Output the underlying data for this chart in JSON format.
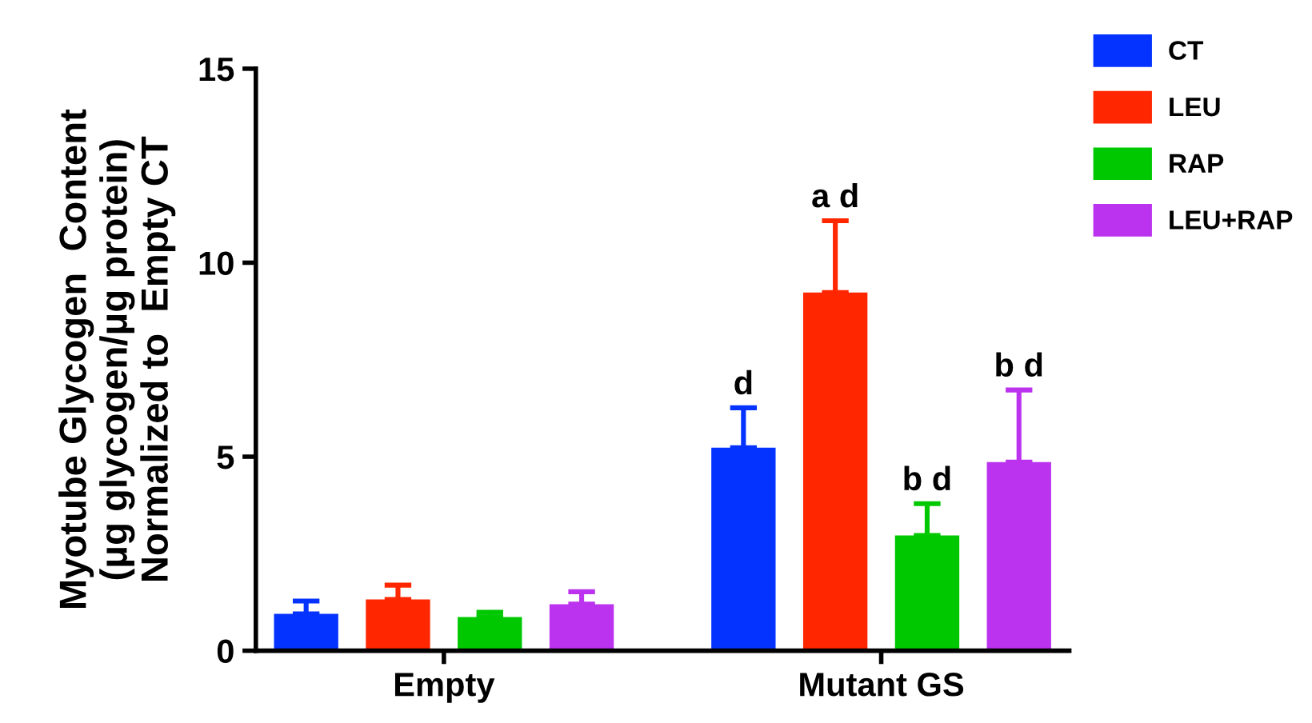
{
  "chart_data": {
    "type": "bar",
    "ylabel": "Myotube Glycogen  Content\n(μg glycogen/μg protein)\nNormalized to  Empty CT",
    "categories": [
      "Empty",
      "Mutant GS"
    ],
    "series": [
      {
        "name": "CT",
        "color": "#0433ff",
        "values": [
          0.95,
          5.23
        ],
        "errors": [
          [
            0.95,
            1.28
          ],
          [
            5.23,
            6.26
          ]
        ]
      },
      {
        "name": "LEU",
        "color": "#ff2600",
        "values": [
          1.32,
          9.23
        ],
        "errors": [
          [
            1.32,
            1.69
          ],
          [
            9.23,
            11.08
          ]
        ]
      },
      {
        "name": "RAP",
        "color": "#00c800",
        "values": [
          0.87,
          2.97
        ],
        "errors": [
          [
            0.87,
            0.99
          ],
          [
            2.97,
            3.79
          ]
        ]
      },
      {
        "name": "LEU+RAP",
        "color": "#bb33ee",
        "values": [
          1.2,
          4.86
        ],
        "errors": [
          [
            1.2,
            1.52
          ],
          [
            4.86,
            6.72
          ]
        ]
      }
    ],
    "ylim": [
      0,
      15
    ],
    "yticks": [
      0,
      5,
      10,
      15
    ],
    "grid": false,
    "legend": "top right",
    "annotations": [
      "d",
      "a d",
      "b d",
      "b d"
    ]
  }
}
